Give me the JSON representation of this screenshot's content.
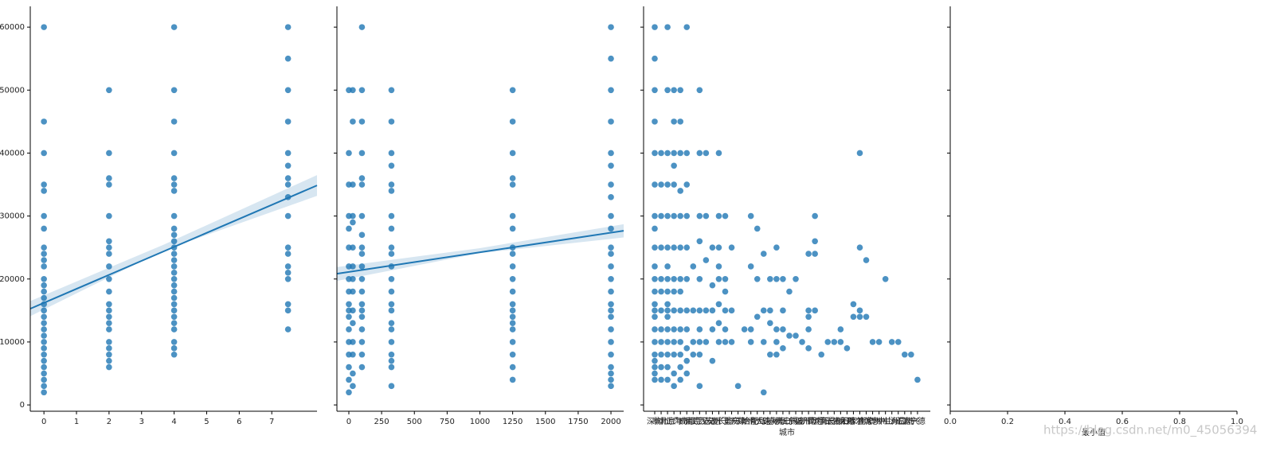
{
  "chart_data": [
    {
      "type": "scatter",
      "color": "#1f77b4",
      "xlim": [
        -0.42,
        8.39
      ],
      "xticks": [
        0,
        1,
        2,
        3,
        4,
        5,
        6,
        7
      ],
      "ylim": [
        -1000,
        63300
      ],
      "yticks": [
        0,
        10000,
        20000,
        30000,
        40000,
        50000,
        60000
      ],
      "groups": [
        {
          "x": 0,
          "values": [
            2000,
            3000,
            4000,
            5000,
            6000,
            7000,
            8000,
            9000,
            10000,
            11000,
            12000,
            13000,
            14000,
            15000,
            16000,
            17000,
            18000,
            19000,
            20000,
            22000,
            23000,
            24000,
            25000,
            28000,
            30000,
            34000,
            35000,
            40000,
            45000,
            60000
          ]
        },
        {
          "x": 2,
          "values": [
            6000,
            7000,
            8000,
            9000,
            10000,
            12000,
            13000,
            14000,
            15000,
            16000,
            18000,
            20000,
            22000,
            24000,
            25000,
            26000,
            30000,
            35000,
            36000,
            40000,
            50000
          ]
        },
        {
          "x": 4,
          "values": [
            8000,
            9000,
            10000,
            12000,
            13000,
            14000,
            15000,
            16000,
            17000,
            18000,
            19000,
            20000,
            21000,
            22000,
            23000,
            24000,
            25000,
            26000,
            27000,
            28000,
            30000,
            34000,
            35000,
            36000,
            40000,
            45000,
            50000,
            60000
          ]
        },
        {
          "x": 7.5,
          "values": [
            12000,
            15000,
            16000,
            20000,
            21000,
            22000,
            24000,
            25000,
            30000,
            33000,
            35000,
            36000,
            38000,
            40000,
            45000,
            50000,
            55000,
            60000
          ]
        }
      ],
      "fit": {
        "x": [
          -0.42,
          8.39
        ],
        "y": [
          15280,
          34860
        ]
      },
      "ci": {
        "x": [
          -0.42,
          3.7,
          8.39
        ],
        "lower": [
          14100,
          24600,
          33200
        ],
        "upper": [
          16500,
          25500,
          36500
        ]
      }
    },
    {
      "type": "scatter",
      "color": "#1f77b4",
      "xlim": [
        -91,
        2097
      ],
      "xticks": [
        0,
        250,
        500,
        750,
        1000,
        1250,
        1500,
        1750,
        2000
      ],
      "groups": [
        {
          "x": 0,
          "values": [
            2000,
            4000,
            6000,
            8000,
            10000,
            12000,
            14000,
            15000,
            16000,
            18000,
            20000,
            22000,
            25000,
            28000,
            30000,
            35000,
            40000,
            50000
          ]
        },
        {
          "x": 30,
          "values": [
            3000,
            5000,
            8000,
            10000,
            13000,
            15000,
            18000,
            20000,
            22000,
            25000,
            29000,
            30000,
            35000,
            45000,
            50000
          ]
        },
        {
          "x": 100,
          "values": [
            6000,
            8000,
            10000,
            12000,
            14000,
            15000,
            16000,
            18000,
            20000,
            22000,
            24000,
            25000,
            27000,
            30000,
            35000,
            36000,
            40000,
            45000,
            50000,
            60000
          ]
        },
        {
          "x": 325,
          "values": [
            3000,
            6000,
            7000,
            8000,
            10000,
            12000,
            13000,
            15000,
            16000,
            18000,
            20000,
            22000,
            24000,
            25000,
            28000,
            30000,
            34000,
            35000,
            38000,
            40000,
            45000,
            50000
          ]
        },
        {
          "x": 1250,
          "values": [
            4000,
            6000,
            8000,
            10000,
            12000,
            13000,
            14000,
            15000,
            16000,
            18000,
            20000,
            22000,
            24000,
            25000,
            28000,
            30000,
            35000,
            36000,
            40000,
            45000,
            50000
          ]
        },
        {
          "x": 2000,
          "values": [
            3000,
            4000,
            5000,
            6000,
            8000,
            10000,
            12000,
            14000,
            15000,
            16000,
            18000,
            20000,
            22000,
            24000,
            25000,
            28000,
            30000,
            33000,
            35000,
            38000,
            40000,
            45000,
            50000,
            55000,
            60000
          ]
        }
      ],
      "fit": {
        "x": [
          -91,
          2097
        ],
        "y": [
          20840,
          27660
        ]
      },
      "ci": {
        "x": [
          -91,
          1000,
          2097
        ],
        "lower": [
          19700,
          24100,
          26600
        ],
        "upper": [
          21900,
          24900,
          28700
        ]
      }
    },
    {
      "type": "scatter",
      "color": "#1f77b4",
      "xlabel": "城市",
      "xlim": [
        -1.74,
        43.0
      ],
      "categories": [
        "深圳",
        "杭州",
        "北京",
        "上海",
        "广州",
        "成都",
        "南京",
        "武汉",
        "西安",
        "苏州",
        "厦门",
        "长沙",
        "重庆",
        "天津",
        "郑州",
        "合肥",
        "青岛",
        "大连",
        "珠海",
        "东莞",
        "佛山",
        "无锡",
        "宁波",
        "福州",
        "济南",
        "昆明",
        "沈阳",
        "南昌",
        "长春",
        "贵阳",
        "太原",
        "石家庄",
        "哈尔滨",
        "南宁",
        "常州",
        "惠州",
        "中山",
        "兰州",
        "海口",
        "温州",
        "嘉兴",
        "宁德"
      ],
      "values": [
        [
          4000,
          5000,
          6000,
          7000,
          8000,
          10000,
          12000,
          14000,
          15000,
          16000,
          18000,
          20000,
          22000,
          25000,
          28000,
          30000,
          35000,
          40000,
          45000,
          50000,
          55000,
          60000
        ],
        [
          4000,
          6000,
          8000,
          10000,
          12000,
          15000,
          18000,
          20000,
          25000,
          30000,
          35000,
          40000
        ],
        [
          4000,
          6000,
          8000,
          10000,
          12000,
          14000,
          15000,
          16000,
          18000,
          20000,
          22000,
          25000,
          30000,
          35000,
          40000,
          50000,
          60000
        ],
        [
          3000,
          5000,
          8000,
          10000,
          12000,
          15000,
          18000,
          20000,
          25000,
          30000,
          35000,
          38000,
          40000,
          45000,
          50000
        ],
        [
          4000,
          6000,
          8000,
          10000,
          12000,
          15000,
          18000,
          20000,
          25000,
          30000,
          34000,
          40000,
          45000,
          50000
        ],
        [
          5000,
          7000,
          9000,
          12000,
          15000,
          20000,
          25000,
          30000,
          35000,
          40000,
          60000
        ],
        [
          8000,
          10000,
          15000,
          22000
        ],
        [
          3000,
          8000,
          10000,
          12000,
          15000,
          20000,
          26000,
          30000,
          40000,
          50000
        ],
        [
          10000,
          15000,
          23000,
          30000,
          40000
        ],
        [
          7000,
          12000,
          15000,
          19000,
          25000
        ],
        [
          10000,
          13000,
          16000,
          20000,
          22000,
          25000,
          30000,
          40000
        ],
        [
          10000,
          12000,
          15000,
          18000,
          20000,
          30000
        ],
        [
          10000,
          15000,
          25000
        ],
        [
          3000
        ],
        [
          12000
        ],
        [
          10000,
          12000,
          22000,
          30000
        ],
        [
          14000,
          20000,
          28000
        ],
        [
          2000,
          10000,
          15000,
          24000
        ],
        [
          8000,
          13000,
          15000,
          20000
        ],
        [
          8000,
          10000,
          12000,
          20000,
          25000
        ],
        [
          9000,
          12000,
          15000,
          20000
        ],
        [
          11000,
          18000
        ],
        [
          11000,
          20000
        ],
        [
          10000
        ],
        [
          9000,
          12000,
          14000,
          15000,
          24000
        ],
        [
          15000,
          24000,
          26000,
          30000
        ],
        [
          8000
        ],
        [
          10000
        ],
        [
          10000
        ],
        [
          10000,
          12000
        ],
        [
          9000
        ],
        [
          14000,
          16000
        ],
        [
          14000,
          15000,
          25000,
          40000
        ],
        [
          14000,
          23000
        ],
        [
          10000
        ],
        [
          10000
        ],
        [
          20000
        ],
        [
          10000
        ],
        [
          10000
        ],
        [
          8000
        ],
        [
          8000
        ],
        [
          4000
        ]
      ]
    },
    {
      "type": "scatter",
      "xlabel": "最小值",
      "xlim": [
        0,
        1
      ],
      "xticks": [
        {
          "value": 0,
          "label": "0.0"
        },
        {
          "value": 0.2,
          "label": "0.2"
        },
        {
          "value": 0.4,
          "label": "0.4"
        },
        {
          "value": 0.6,
          "label": "0.6"
        },
        {
          "value": 0.8,
          "label": "0.8"
        },
        {
          "value": 1,
          "label": "1.0"
        }
      ]
    }
  ],
  "watermark": "https://blog.csdn.net/m0_45056394"
}
